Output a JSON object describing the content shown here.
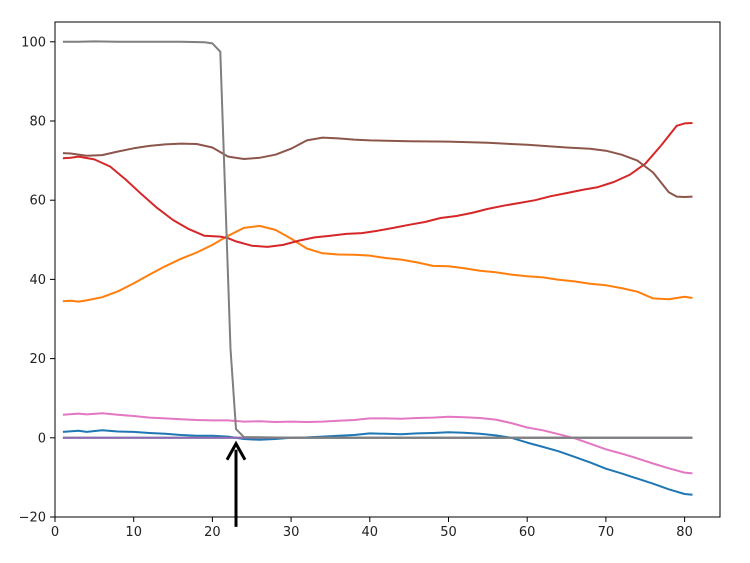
{
  "chart_data": {
    "type": "line",
    "title": "",
    "xlabel": "",
    "ylabel": "",
    "xlim": [
      0,
      84.5
    ],
    "ylim": [
      -20,
      105
    ],
    "x_ticks": [
      0,
      10,
      20,
      30,
      40,
      50,
      60,
      70,
      80
    ],
    "y_ticks": [
      -20,
      0,
      20,
      40,
      60,
      80,
      100
    ],
    "grid": false,
    "legend": "none",
    "series": [
      {
        "color": "#1f77b4",
        "points": [
          [
            1,
            1.5
          ],
          [
            3,
            1.8
          ],
          [
            4,
            1.5
          ],
          [
            6,
            1.9
          ],
          [
            8,
            1.6
          ],
          [
            10,
            1.5
          ],
          [
            12,
            1.2
          ],
          [
            14,
            1.0
          ],
          [
            16,
            0.7
          ],
          [
            18,
            0.5
          ],
          [
            20,
            0.5
          ],
          [
            22,
            0.3
          ],
          [
            24,
            -0.3
          ],
          [
            26,
            -0.5
          ],
          [
            28,
            -0.3
          ],
          [
            30,
            0.0
          ],
          [
            32,
            0.1
          ],
          [
            34,
            0.3
          ],
          [
            36,
            0.5
          ],
          [
            38,
            0.7
          ],
          [
            40,
            1.1
          ],
          [
            42,
            1.0
          ],
          [
            44,
            0.9
          ],
          [
            46,
            1.1
          ],
          [
            48,
            1.2
          ],
          [
            50,
            1.4
          ],
          [
            52,
            1.3
          ],
          [
            54,
            1.0
          ],
          [
            56,
            0.6
          ],
          [
            58,
            0.0
          ],
          [
            60,
            -1.2
          ],
          [
            62,
            -2.3
          ],
          [
            64,
            -3.4
          ],
          [
            66,
            -4.8
          ],
          [
            68,
            -6.2
          ],
          [
            70,
            -7.8
          ],
          [
            72,
            -9.0
          ],
          [
            74,
            -10.3
          ],
          [
            76,
            -11.6
          ],
          [
            78,
            -13.0
          ],
          [
            80,
            -14.2
          ],
          [
            81,
            -14.4
          ]
        ]
      },
      {
        "color": "#ff7f0e",
        "points": [
          [
            1,
            34.5
          ],
          [
            2,
            34.6
          ],
          [
            3,
            34.4
          ],
          [
            4,
            34.7
          ],
          [
            6,
            35.5
          ],
          [
            8,
            37.0
          ],
          [
            10,
            39.0
          ],
          [
            12,
            41.2
          ],
          [
            14,
            43.3
          ],
          [
            16,
            45.2
          ],
          [
            18,
            46.8
          ],
          [
            20,
            48.7
          ],
          [
            22,
            51.0
          ],
          [
            24,
            53.0
          ],
          [
            26,
            53.5
          ],
          [
            28,
            52.5
          ],
          [
            30,
            50.3
          ],
          [
            32,
            47.8
          ],
          [
            34,
            46.6
          ],
          [
            36,
            46.3
          ],
          [
            38,
            46.2
          ],
          [
            40,
            46.0
          ],
          [
            42,
            45.4
          ],
          [
            44,
            45.0
          ],
          [
            46,
            44.3
          ],
          [
            48,
            43.4
          ],
          [
            50,
            43.3
          ],
          [
            52,
            42.8
          ],
          [
            54,
            42.2
          ],
          [
            56,
            41.8
          ],
          [
            58,
            41.2
          ],
          [
            60,
            40.8
          ],
          [
            62,
            40.5
          ],
          [
            64,
            39.9
          ],
          [
            66,
            39.5
          ],
          [
            68,
            38.9
          ],
          [
            70,
            38.5
          ],
          [
            72,
            37.8
          ],
          [
            74,
            36.9
          ],
          [
            76,
            35.2
          ],
          [
            78,
            35.0
          ],
          [
            80,
            35.6
          ],
          [
            81,
            35.3
          ]
        ]
      },
      {
        "color": "#2ca02c",
        "points": [
          [
            1,
            0.0
          ],
          [
            81,
            0.0
          ]
        ]
      },
      {
        "color": "#d62728",
        "points": [
          [
            1,
            70.6
          ],
          [
            2,
            70.7
          ],
          [
            3,
            71.0
          ],
          [
            5,
            70.3
          ],
          [
            7,
            68.5
          ],
          [
            9,
            65.2
          ],
          [
            11,
            61.5
          ],
          [
            13,
            58.0
          ],
          [
            15,
            55.0
          ],
          [
            17,
            52.7
          ],
          [
            19,
            51.0
          ],
          [
            21,
            50.8
          ],
          [
            22,
            50.4
          ],
          [
            23,
            49.6
          ],
          [
            25,
            48.5
          ],
          [
            27,
            48.2
          ],
          [
            29,
            48.7
          ],
          [
            31,
            49.8
          ],
          [
            33,
            50.6
          ],
          [
            35,
            51.0
          ],
          [
            37,
            51.5
          ],
          [
            39,
            51.7
          ],
          [
            41,
            52.3
          ],
          [
            43,
            53.0
          ],
          [
            45,
            53.8
          ],
          [
            47,
            54.5
          ],
          [
            49,
            55.5
          ],
          [
            51,
            56.0
          ],
          [
            53,
            56.8
          ],
          [
            55,
            57.8
          ],
          [
            57,
            58.6
          ],
          [
            59,
            59.3
          ],
          [
            61,
            60.0
          ],
          [
            63,
            61.0
          ],
          [
            65,
            61.8
          ],
          [
            67,
            62.6
          ],
          [
            69,
            63.3
          ],
          [
            71,
            64.6
          ],
          [
            73,
            66.4
          ],
          [
            75,
            69.2
          ],
          [
            77,
            73.8
          ],
          [
            79,
            78.8
          ],
          [
            80,
            79.4
          ],
          [
            81,
            79.5
          ]
        ]
      },
      {
        "color": "#9467bd",
        "points": [
          [
            1,
            0.0
          ],
          [
            81,
            0.0
          ]
        ]
      },
      {
        "color": "#8c564b",
        "points": [
          [
            1,
            71.9
          ],
          [
            2,
            71.8
          ],
          [
            4,
            71.2
          ],
          [
            6,
            71.4
          ],
          [
            8,
            72.3
          ],
          [
            10,
            73.1
          ],
          [
            12,
            73.7
          ],
          [
            14,
            74.1
          ],
          [
            16,
            74.3
          ],
          [
            18,
            74.2
          ],
          [
            20,
            73.3
          ],
          [
            22,
            71.0
          ],
          [
            24,
            70.4
          ],
          [
            26,
            70.7
          ],
          [
            28,
            71.5
          ],
          [
            30,
            73.0
          ],
          [
            32,
            75.1
          ],
          [
            34,
            75.8
          ],
          [
            36,
            75.6
          ],
          [
            38,
            75.3
          ],
          [
            40,
            75.1
          ],
          [
            45,
            74.9
          ],
          [
            50,
            74.8
          ],
          [
            55,
            74.5
          ],
          [
            60,
            74.0
          ],
          [
            65,
            73.3
          ],
          [
            68,
            73.0
          ],
          [
            70,
            72.5
          ],
          [
            72,
            71.5
          ],
          [
            74,
            70.0
          ],
          [
            76,
            67.0
          ],
          [
            78,
            62.0
          ],
          [
            79,
            60.9
          ],
          [
            80,
            60.8
          ],
          [
            81,
            60.9
          ]
        ]
      },
      {
        "color": "#e377c2",
        "points": [
          [
            1,
            5.8
          ],
          [
            3,
            6.1
          ],
          [
            4,
            5.9
          ],
          [
            6,
            6.2
          ],
          [
            8,
            5.8
          ],
          [
            10,
            5.5
          ],
          [
            12,
            5.1
          ],
          [
            14,
            4.9
          ],
          [
            16,
            4.7
          ],
          [
            18,
            4.5
          ],
          [
            20,
            4.4
          ],
          [
            22,
            4.4
          ],
          [
            24,
            4.1
          ],
          [
            26,
            4.2
          ],
          [
            28,
            4.0
          ],
          [
            30,
            4.1
          ],
          [
            32,
            4.0
          ],
          [
            34,
            4.1
          ],
          [
            36,
            4.3
          ],
          [
            38,
            4.5
          ],
          [
            40,
            4.9
          ],
          [
            42,
            4.9
          ],
          [
            44,
            4.8
          ],
          [
            46,
            5.0
          ],
          [
            48,
            5.1
          ],
          [
            50,
            5.3
          ],
          [
            52,
            5.2
          ],
          [
            54,
            5.0
          ],
          [
            56,
            4.6
          ],
          [
            58,
            3.7
          ],
          [
            60,
            2.6
          ],
          [
            62,
            1.9
          ],
          [
            64,
            0.9
          ],
          [
            66,
            -0.1
          ],
          [
            68,
            -1.5
          ],
          [
            70,
            -2.9
          ],
          [
            72,
            -4.0
          ],
          [
            74,
            -5.2
          ],
          [
            76,
            -6.5
          ],
          [
            78,
            -7.7
          ],
          [
            80,
            -8.8
          ],
          [
            81,
            -9.0
          ]
        ]
      },
      {
        "color": "#7f7f7f",
        "points": [
          [
            1,
            100.0
          ],
          [
            3,
            100.0
          ],
          [
            5,
            100.1
          ],
          [
            8,
            100.0
          ],
          [
            12,
            100.0
          ],
          [
            16,
            100.0
          ],
          [
            19,
            99.9
          ],
          [
            20,
            99.6
          ],
          [
            21,
            97.5
          ],
          [
            22.3,
            22.5
          ],
          [
            23,
            2.2
          ],
          [
            24,
            0.2
          ],
          [
            30,
            0.0
          ],
          [
            40,
            0.0
          ],
          [
            50,
            0.0
          ],
          [
            60,
            0.0
          ],
          [
            70,
            0.0
          ],
          [
            81,
            0.0
          ]
        ]
      }
    ],
    "annotations": [
      {
        "type": "arrow",
        "x": 23,
        "y_tip": -1.5,
        "y_tail": -22.5,
        "color": "#000000"
      }
    ]
  }
}
